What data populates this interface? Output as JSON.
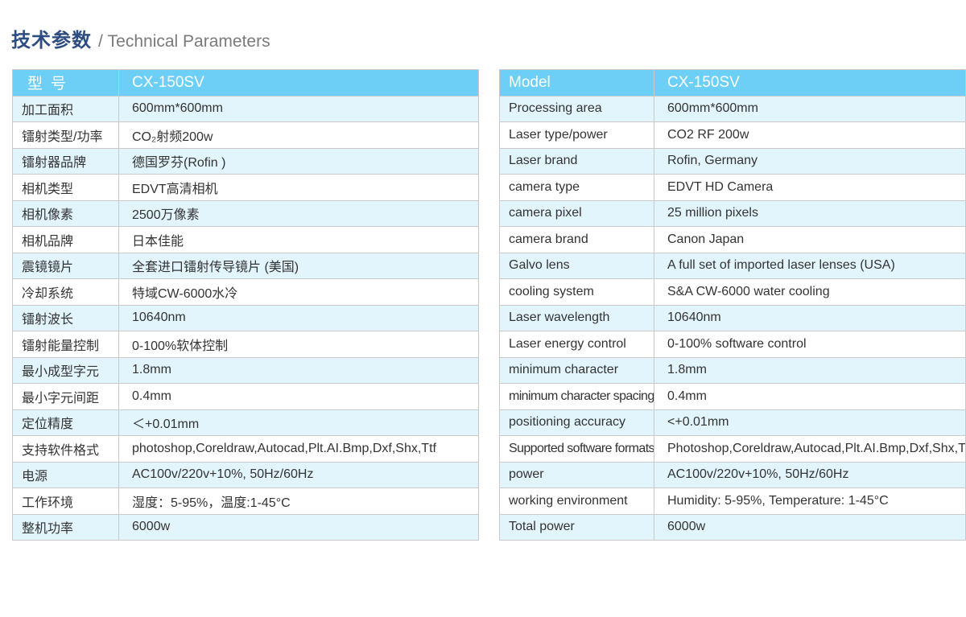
{
  "title": {
    "zh": "技术参数",
    "en": "/ Technical Parameters"
  },
  "colors": {
    "header_bg": "#6dcff6",
    "alt_row": "#e2f4fc",
    "title": "#2d4d82"
  },
  "left_table": {
    "header": [
      "型号",
      "CX-150SV"
    ],
    "rows": [
      [
        "加工面积",
        "600mm*600mm"
      ],
      [
        "镭射类型/功率",
        "CO₂射频200w"
      ],
      [
        "镭射器品牌",
        "德国罗芬(Rofin )"
      ],
      [
        "相机类型",
        "EDVT高清相机"
      ],
      [
        "相机像素",
        "2500万像素"
      ],
      [
        "相机品牌",
        "日本佳能"
      ],
      [
        "震镜镜片",
        "全套进口镭射传导镜片 (美国)"
      ],
      [
        "冷却系统",
        "特域CW-6000水冷"
      ],
      [
        "镭射波长",
        "10640nm"
      ],
      [
        "镭射能量控制",
        "0-100%软体控制"
      ],
      [
        "最小成型字元",
        "1.8mm"
      ],
      [
        "最小字元间距",
        "0.4mm"
      ],
      [
        "定位精度",
        "＜+0.01mm"
      ],
      [
        "支持软件格式",
        "photoshop,Coreldraw,Autocad,Plt.AI.Bmp,Dxf,Shx,Ttf"
      ],
      [
        "电源",
        "AC100v/220v+10%, 50Hz/60Hz"
      ],
      [
        "工作环境",
        "湿度：5-95%，温度:1-45°C"
      ],
      [
        "整机功率",
        "6000w"
      ]
    ]
  },
  "right_table": {
    "header": [
      "Model",
      "CX-150SV"
    ],
    "rows": [
      [
        "Processing area",
        "600mm*600mm"
      ],
      [
        "Laser type/power",
        "CO2 RF 200w"
      ],
      [
        "Laser brand",
        "Rofin, Germany"
      ],
      [
        "camera type",
        "EDVT HD Camera"
      ],
      [
        "camera pixel",
        "25 million pixels"
      ],
      [
        "camera brand",
        "Canon Japan"
      ],
      [
        "Galvo lens",
        "A full set of imported laser lenses (USA)"
      ],
      [
        "cooling system",
        "S&A CW-6000 water cooling"
      ],
      [
        "Laser wavelength",
        "10640nm"
      ],
      [
        "Laser energy control",
        "0-100% software control"
      ],
      [
        "minimum character",
        "1.8mm"
      ],
      [
        "minimum character spacing",
        "0.4mm"
      ],
      [
        "positioning accuracy",
        "<+0.01mm"
      ],
      [
        "Supported software formats",
        "Photoshop,Coreldraw,Autocad,Plt.AI.Bmp,Dxf,Shx,Ttf"
      ],
      [
        "power",
        "AC100v/220v+10%, 50Hz/60Hz"
      ],
      [
        "working environment",
        "Humidity: 5-95%, Temperature: 1-45°C"
      ],
      [
        "Total power",
        "6000w"
      ]
    ]
  }
}
